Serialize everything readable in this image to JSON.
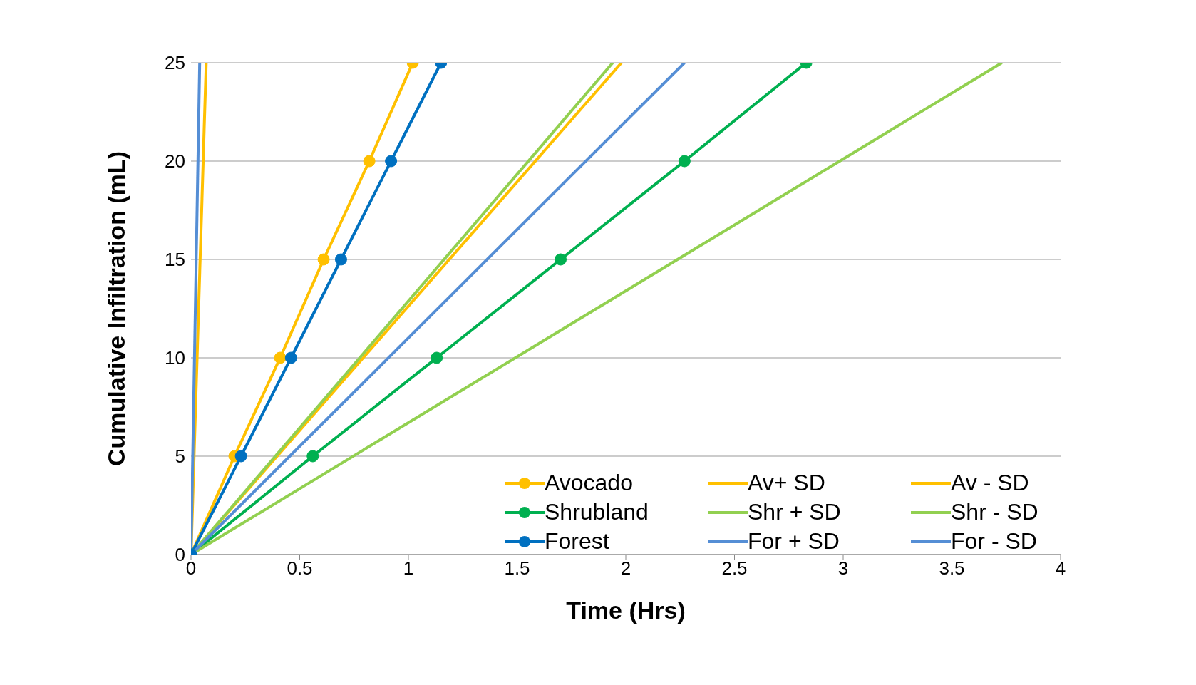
{
  "chart_data": {
    "type": "line",
    "xlabel": "Time (Hrs)",
    "ylabel": "Cumulative Infiltration (mL)",
    "xlim": [
      0,
      4
    ],
    "xticks": [
      0,
      0.5,
      1,
      1.5,
      2,
      2.5,
      3,
      3.5,
      4
    ],
    "ylim": [
      0,
      25
    ],
    "yticks": [
      0,
      5,
      10,
      15,
      20,
      25
    ],
    "grid": "y",
    "legend": "bottom right",
    "line_style": "solid",
    "series": [
      {
        "name": "Avocado",
        "color": "#ffc000",
        "marker": "circle",
        "x": [
          0,
          0.2,
          0.41,
          0.61,
          0.82,
          1.02
        ],
        "values": [
          0,
          5,
          10,
          15,
          20,
          25
        ]
      },
      {
        "name": "Av+ SD",
        "color": "#ffc000",
        "marker": "none",
        "x": [
          0,
          0.07
        ],
        "values": [
          0,
          25
        ]
      },
      {
        "name": "Av - SD",
        "color": "#ffc000",
        "marker": "none",
        "x": [
          0,
          1.98
        ],
        "values": [
          0,
          25
        ]
      },
      {
        "name": "Shrubland",
        "color": "#00b050",
        "marker": "circle",
        "x": [
          0,
          0.56,
          1.13,
          1.7,
          2.27,
          2.83
        ],
        "values": [
          0,
          5,
          10,
          15,
          20,
          25
        ]
      },
      {
        "name": "Shr + SD",
        "color": "#92d050",
        "marker": "none",
        "x": [
          0,
          1.94
        ],
        "values": [
          0,
          25
        ]
      },
      {
        "name": "Shr - SD",
        "color": "#92d050",
        "marker": "none",
        "x": [
          0,
          3.73
        ],
        "values": [
          0,
          25
        ]
      },
      {
        "name": "Forest",
        "color": "#0070c0",
        "marker": "circle",
        "x": [
          0,
          0.23,
          0.46,
          0.69,
          0.92,
          1.15
        ],
        "values": [
          0,
          5,
          10,
          15,
          20,
          25
        ]
      },
      {
        "name": "For + SD",
        "color": "#558ed5",
        "marker": "none",
        "x": [
          0,
          0.04
        ],
        "values": [
          0,
          25
        ]
      },
      {
        "name": "For - SD",
        "color": "#558ed5",
        "marker": "none",
        "x": [
          0,
          2.27
        ],
        "values": [
          0,
          25
        ]
      }
    ]
  }
}
